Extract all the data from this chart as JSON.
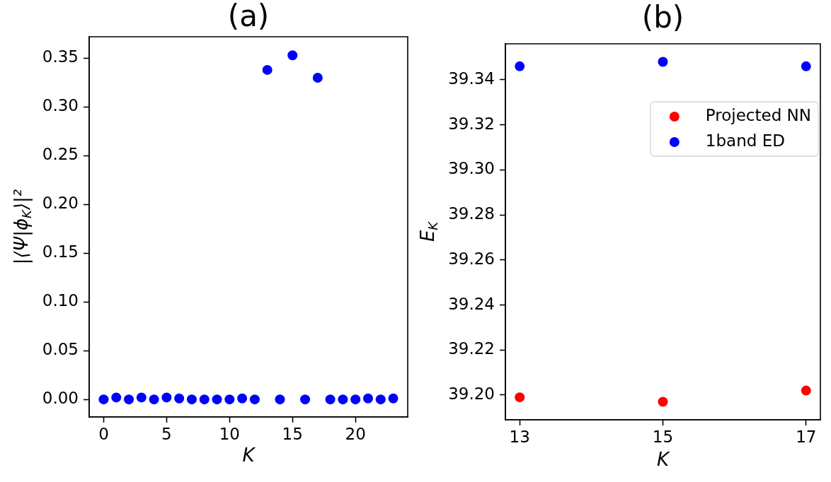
{
  "chart_data": [
    {
      "type": "scatter",
      "title": "(a)",
      "xlabel": "K",
      "ylabel": "|⟨Ψ|ϕ$_{K}$⟩|²",
      "x": [
        0,
        1,
        2,
        3,
        4,
        5,
        6,
        7,
        8,
        9,
        10,
        11,
        12,
        13,
        14,
        15,
        16,
        17,
        18,
        19,
        20,
        21,
        22,
        23
      ],
      "series": [
        {
          "color": "#0000ff",
          "values": [
            0.0,
            0.002,
            0.0,
            0.002,
            0.0,
            0.002,
            0.001,
            0.0,
            0.0,
            0.0,
            0.0,
            0.001,
            0.0,
            0.338,
            0.0,
            0.353,
            0.0,
            0.33,
            0.0,
            0.0,
            0.0,
            0.001,
            0.0,
            0.001
          ]
        }
      ],
      "xlim": [
        -1.15,
        24.15
      ],
      "xticks": [
        0,
        5,
        10,
        15,
        20
      ],
      "ylim": [
        -0.018,
        0.372
      ],
      "yticks": [
        {
          "value": 0,
          "label": "0.00"
        },
        0.05,
        {
          "value": 0.1,
          "label": "0.10"
        },
        0.15,
        {
          "value": 0.2,
          "label": "0.20"
        },
        0.25,
        {
          "value": 0.3,
          "label": "0.30"
        },
        0.35
      ],
      "marker": "circle"
    },
    {
      "type": "scatter",
      "title": "(b)",
      "xlabel": "K",
      "ylabel": "E$_{K}$",
      "x": [
        13,
        15,
        17
      ],
      "series": [
        {
          "name": "Projected NN",
          "color": "#ff0000",
          "values": [
            39.199,
            39.197,
            39.202
          ]
        },
        {
          "name": "1band ED",
          "color": "#0000ff",
          "values": [
            39.346,
            39.348,
            39.346
          ]
        }
      ],
      "xlim": [
        12.8,
        17.2
      ],
      "xticks": [
        13,
        15,
        17
      ],
      "ylim": [
        39.189,
        39.356
      ],
      "yticks": [
        {
          "value": 39.2,
          "label": "39.20"
        },
        39.22,
        39.24,
        39.26,
        39.28,
        {
          "value": 39.3,
          "label": "39.30"
        },
        39.32,
        39.34
      ],
      "legend": "top right",
      "marker": "circle"
    }
  ]
}
